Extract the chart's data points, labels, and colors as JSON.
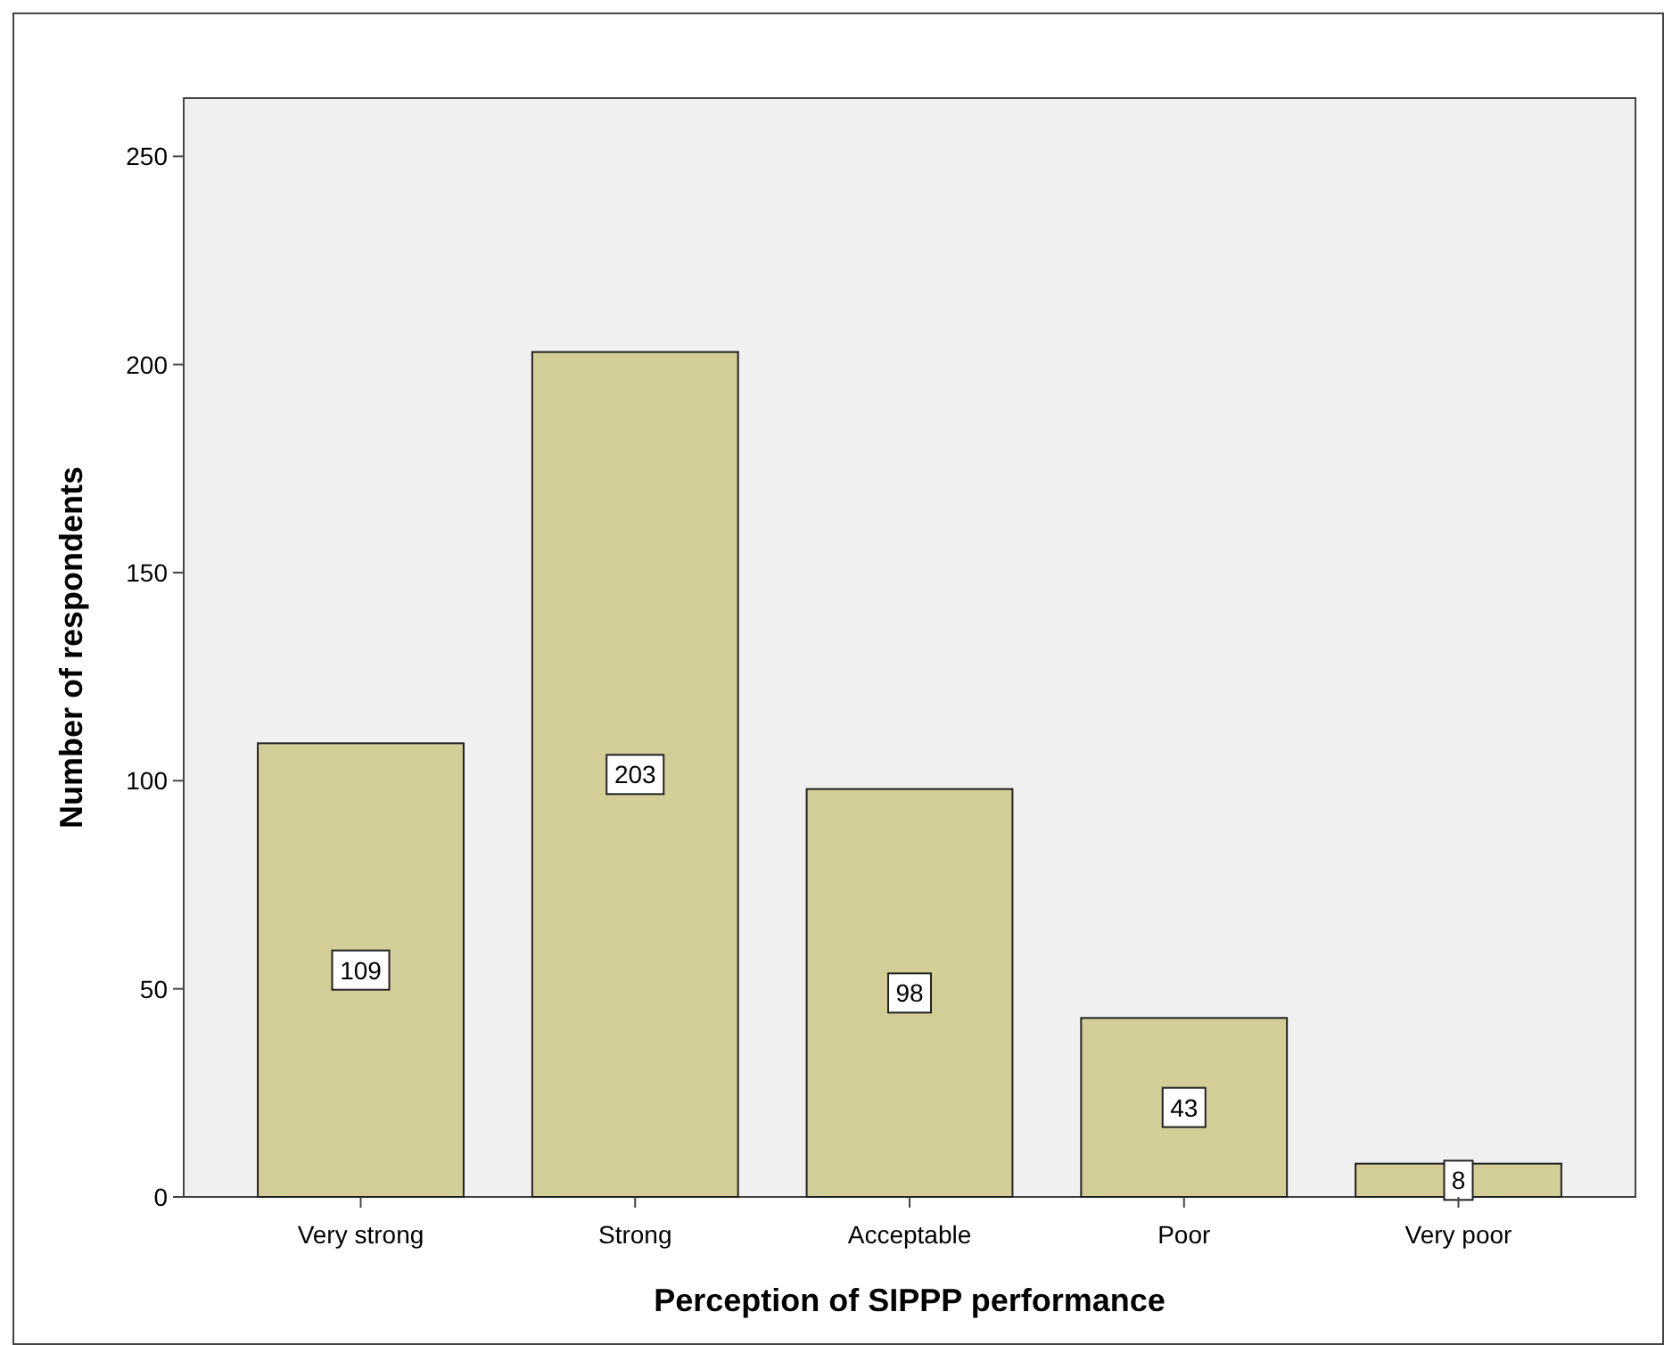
{
  "chart_data": {
    "type": "bar",
    "xlabel": "Perception of SIPPP performance",
    "ylabel": "Number of respondents",
    "categories": [
      "Very strong",
      "Strong",
      "Acceptable",
      "Poor",
      "Very poor"
    ],
    "values": [
      109,
      203,
      98,
      43,
      8
    ],
    "color": "#d3ce97",
    "ylim": [
      0,
      264
    ],
    "yticks": [
      0,
      50,
      100,
      150,
      200,
      250
    ],
    "data_labels": true
  }
}
